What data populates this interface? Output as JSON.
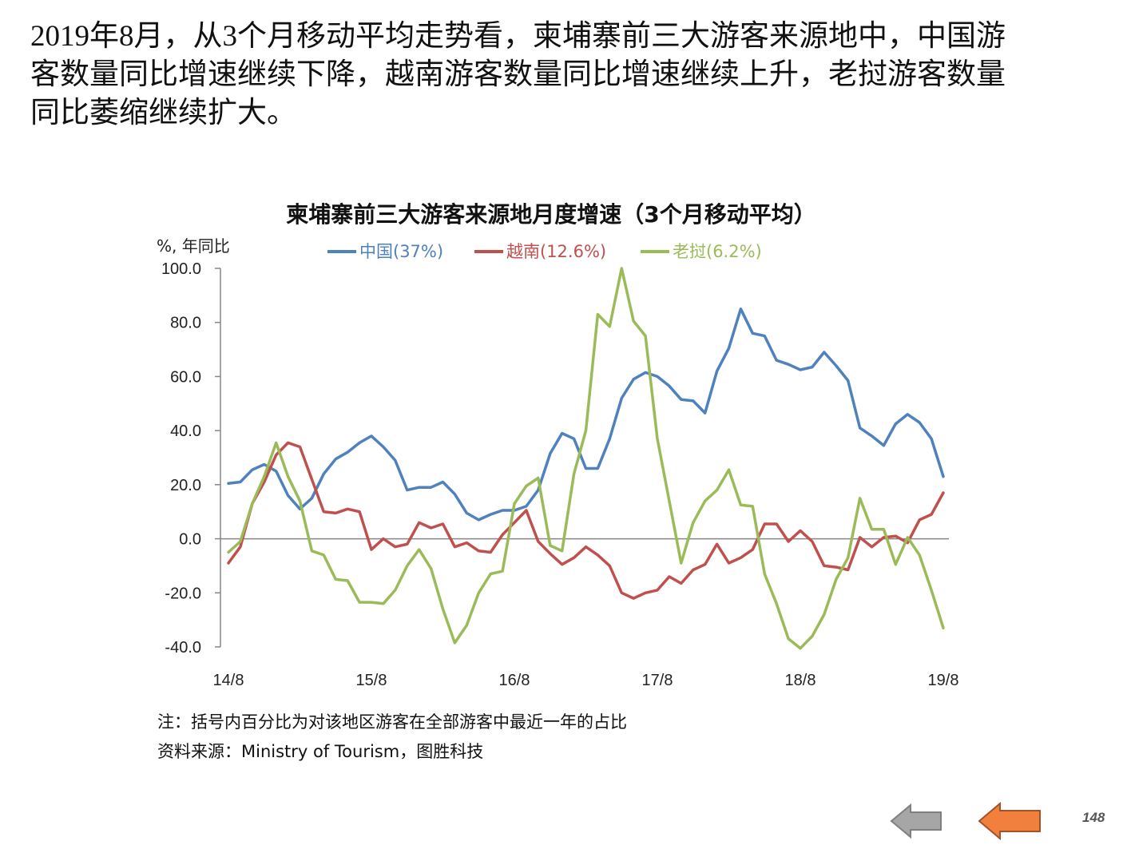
{
  "intro": {
    "line1": "2019年8月，从3个月移动平均走势看，柬埔寨前三大游客来源地中，中国游",
    "line2": "客数量同比增速继续下降，越南游客数量同比增速继续上升，老挝游客数量",
    "line3": "同比萎缩继续扩大。"
  },
  "notes": {
    "note": "注：括号内百分比为对该地区游客在全部游客中最近一年的占比",
    "source": "资料来源：Ministry of Tourism，图胜科技"
  },
  "page_number": "148",
  "nav": {
    "back_icon": "arrow-left-gray-icon",
    "prev_icon": "arrow-left-orange-icon"
  },
  "colors": {
    "china": "#4F81BD",
    "vietnam": "#C0504D",
    "laos": "#9BBB59",
    "back_arrow": "#A6A6A6",
    "prev_arrow": "#F0803C"
  },
  "chart_data": {
    "type": "line",
    "title": "柬埔寨前三大游客来源地月度增速（3个月移动平均）",
    "ylabel": "%, 年同比",
    "xlabel": "",
    "ylim": [
      -40,
      100
    ],
    "yticks": [
      "100.0",
      "80.0",
      "60.0",
      "40.0",
      "20.0",
      "0.0",
      "-20.0",
      "-40.0"
    ],
    "x_tick_labels": [
      "14/8",
      "15/8",
      "16/8",
      "17/8",
      "18/8",
      "19/8"
    ],
    "x_start": "2014-08",
    "x_end": "2019-08",
    "series": [
      {
        "name": "中国(37%)",
        "color": "#4F81BD",
        "values": [
          20.5,
          21,
          25.5,
          27.5,
          25,
          16,
          11,
          15,
          24,
          29.5,
          32,
          35.5,
          38,
          34,
          29,
          18,
          19,
          19,
          21,
          16.5,
          9.5,
          7,
          9,
          10.5,
          10.5,
          12,
          18,
          31.5,
          39,
          37,
          26,
          26,
          37,
          52,
          59,
          61.5,
          60,
          56.5,
          51.5,
          51,
          46.5,
          62,
          70.5,
          85,
          76,
          75,
          66,
          64.5,
          62.5,
          63.5,
          69,
          64,
          58.5,
          41,
          38,
          34.5,
          42.5,
          46,
          43,
          37,
          23
        ]
      },
      {
        "name": "越南(12.6%)",
        "color": "#C0504D",
        "values": [
          -9,
          -3,
          13,
          21,
          31,
          35.5,
          34,
          22,
          10,
          9.5,
          11,
          10,
          -4,
          0,
          -3,
          -2,
          6,
          4,
          5.5,
          -3,
          -1.5,
          -4.5,
          -5,
          1.5,
          6,
          10.5,
          -1,
          -5.5,
          -9.5,
          -7,
          -3,
          -6,
          -10,
          -20,
          -22,
          -20,
          -19,
          -14,
          -16.5,
          -11.5,
          -9.5,
          -2,
          -9,
          -7,
          -4,
          5.5,
          5.5,
          -1,
          3,
          -1,
          -10,
          -10.5,
          -11.5,
          0.5,
          -3,
          0.5,
          1,
          -1.5,
          7,
          9,
          17
        ]
      },
      {
        "name": "老挝(6.2%)",
        "color": "#9BBB59",
        "values": [
          -5,
          -1,
          13,
          23,
          35.5,
          23,
          14,
          -4.5,
          -6,
          -15,
          -15.5,
          -23.5,
          -23.5,
          -24,
          -19,
          -10,
          -4,
          -11,
          -26,
          -38.5,
          -32,
          -20,
          -13,
          -12,
          13,
          19.5,
          22.5,
          -2.5,
          -4.5,
          24,
          40,
          83,
          78.5,
          100,
          80.5,
          75,
          37,
          14,
          -9,
          6,
          14,
          18,
          25.5,
          12.5,
          12,
          -13,
          -24,
          -37,
          -40.5,
          -36,
          -28,
          -15,
          -7,
          15,
          3.5,
          3.5,
          -9.5,
          0.5,
          -6,
          -19,
          -33
        ]
      }
    ]
  }
}
